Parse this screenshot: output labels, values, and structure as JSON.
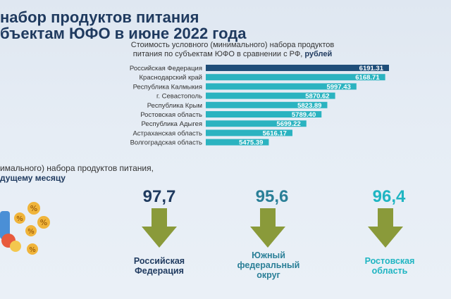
{
  "header": {
    "title_line1": "набор продуктов питания",
    "title_line2": "бъектам ЮФО в июне 2022 года"
  },
  "chart_header": {
    "line1": "Стоимость условного (минимального) набора продуктов",
    "line2_prefix": "питания по субъектам ЮФО в сравнении с РФ, ",
    "line2_unit": "рублей"
  },
  "chart_data": {
    "type": "bar",
    "orientation": "horizontal",
    "categories": [
      "Российская Федерация",
      "Краснодарский край",
      "Республика Калмыкия",
      "г. Севастополь",
      "Республика Крым",
      "Ростовская область",
      "Республика Адыгея",
      "Астраханская область",
      "Волгоградская область"
    ],
    "values": [
      6191.31,
      6168.71,
      5997.43,
      5870.62,
      5823.89,
      5789.4,
      5699.22,
      5616.17,
      5475.39
    ],
    "value_labels": [
      "6191.31",
      "6168.71",
      "5997.43",
      "5870.62",
      "5823.89",
      "5789.40",
      "5699.22",
      "5616.17",
      "5475.39"
    ],
    "colors": {
      "highlight": "#1f4e79",
      "default": "#2bb3c0"
    }
  },
  "section": {
    "sub_line1": "имального) набора продуктов питания,",
    "sub_line2": "дущему месяцу"
  },
  "kpis": [
    {
      "value": "97,7",
      "label": [
        "Российская",
        "Федерация"
      ],
      "value_color": "#1f3a5f",
      "label_color": "#1f3a5f"
    },
    {
      "value": "95,6",
      "label": [
        "Южный",
        "федеральный",
        "округ"
      ],
      "value_color": "#2a7f97",
      "label_color": "#2a7f97"
    },
    {
      "value": "96,4",
      "label": [
        "Ростовская",
        "область"
      ],
      "value_color": "#1fb5c2",
      "label_color": "#1fb5c2"
    }
  ],
  "colors": {
    "arrow": "#8a9a3a",
    "title": "#1f3a5f"
  }
}
